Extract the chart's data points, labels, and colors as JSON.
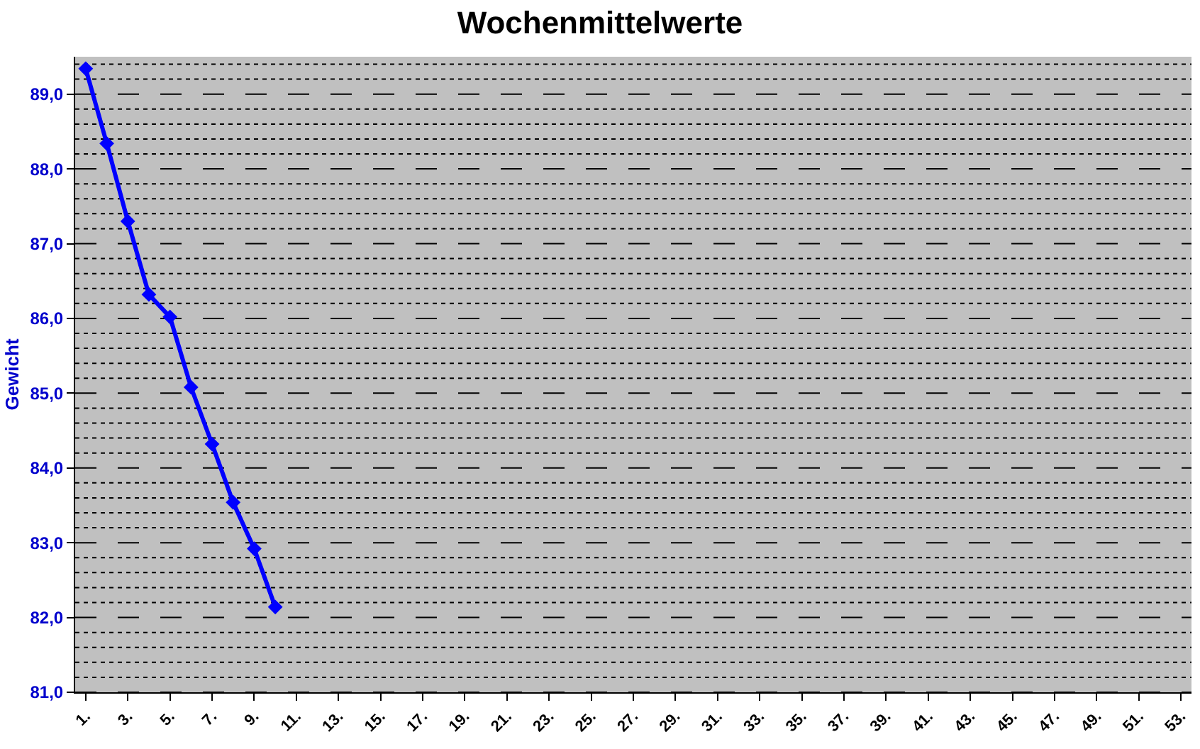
{
  "chart_data": {
    "type": "line",
    "title": "Wochenmittelwerte",
    "ylabel": "Gewicht",
    "categories": [
      "1.",
      null,
      "3.",
      null,
      "5.",
      null,
      "7.",
      null,
      "9.",
      null,
      "11.",
      null,
      "13.",
      null,
      "15.",
      null,
      "17.",
      null,
      "19.",
      null,
      "21.",
      null,
      "23.",
      null,
      "25.",
      null,
      "27.",
      null,
      "29.",
      null,
      "31.",
      null,
      "33.",
      null,
      "35.",
      null,
      "37.",
      null,
      "39.",
      null,
      "41.",
      null,
      "43.",
      null,
      "45.",
      null,
      "47.",
      null,
      "49.",
      null,
      "51.",
      null,
      "53."
    ],
    "series": [
      {
        "color": "#0000ff",
        "values": [
          89.34,
          88.34,
          87.3,
          86.32,
          86.02,
          85.08,
          84.32,
          83.54,
          82.92,
          82.14,
          null,
          null,
          null,
          null,
          null,
          null,
          null,
          null,
          null,
          null,
          null,
          null,
          null,
          null,
          null,
          null,
          null,
          null,
          null,
          null,
          null,
          null,
          null,
          null,
          null,
          null,
          null,
          null,
          null,
          null,
          null,
          null,
          null,
          null,
          null,
          null,
          null,
          null,
          null,
          null,
          null,
          null,
          null
        ]
      }
    ],
    "ylim": [
      81,
      89.5
    ],
    "yticks": [
      {
        "value": 81,
        "label": "81,0"
      },
      {
        "value": 81.2,
        "label": null
      },
      {
        "value": 81.4,
        "label": null
      },
      {
        "value": 81.6,
        "label": null
      },
      {
        "value": 81.8,
        "label": null
      },
      {
        "value": 82,
        "label": "82,0"
      },
      {
        "value": 82.2,
        "label": null
      },
      {
        "value": 82.4,
        "label": null
      },
      {
        "value": 82.6,
        "label": null
      },
      {
        "value": 82.8,
        "label": null
      },
      {
        "value": 83,
        "label": "83,0"
      },
      {
        "value": 83.2,
        "label": null
      },
      {
        "value": 83.4,
        "label": null
      },
      {
        "value": 83.6,
        "label": null
      },
      {
        "value": 83.8,
        "label": null
      },
      {
        "value": 84,
        "label": "84,0"
      },
      {
        "value": 84.2,
        "label": null
      },
      {
        "value": 84.4,
        "label": null
      },
      {
        "value": 84.6,
        "label": null
      },
      {
        "value": 84.8,
        "label": null
      },
      {
        "value": 85,
        "label": "85,0"
      },
      {
        "value": 85.2,
        "label": null
      },
      {
        "value": 85.4,
        "label": null
      },
      {
        "value": 85.6,
        "label": null
      },
      {
        "value": 85.8,
        "label": null
      },
      {
        "value": 86,
        "label": "86,0"
      },
      {
        "value": 86.2,
        "label": null
      },
      {
        "value": 86.4,
        "label": null
      },
      {
        "value": 86.6,
        "label": null
      },
      {
        "value": 86.8,
        "label": null
      },
      {
        "value": 87,
        "label": "87,0"
      },
      {
        "value": 87.2,
        "label": null
      },
      {
        "value": 87.4,
        "label": null
      },
      {
        "value": 87.6,
        "label": null
      },
      {
        "value": 87.8,
        "label": null
      },
      {
        "value": 88,
        "label": "88,0"
      },
      {
        "value": 88.2,
        "label": null
      },
      {
        "value": 88.4,
        "label": null
      },
      {
        "value": 88.6,
        "label": null
      },
      {
        "value": 88.8,
        "label": null
      },
      {
        "value": 89,
        "label": "89,0"
      },
      {
        "value": 89.2,
        "label": null
      },
      {
        "value": 89.4,
        "label": null
      }
    ],
    "grid": "y",
    "marker": "diamond",
    "line_style": "solid"
  }
}
